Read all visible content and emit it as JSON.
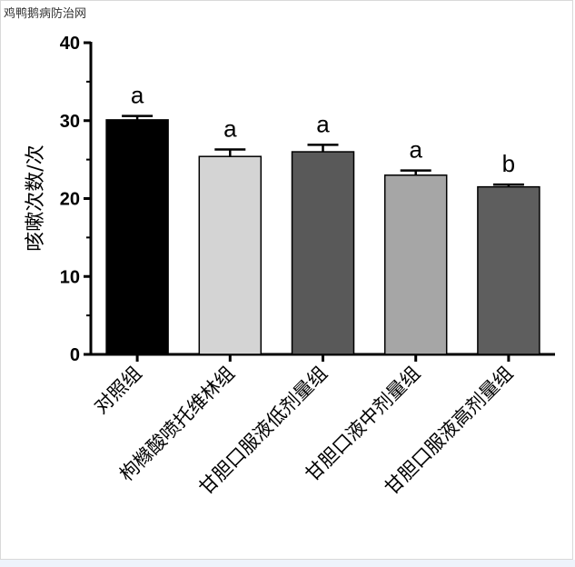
{
  "watermark": "鸡鸭鹅病防治网",
  "chart_data": {
    "type": "bar",
    "ylabel": "咳嗽次数/次",
    "ylim": [
      0,
      40
    ],
    "yticks": [
      0,
      10,
      20,
      30,
      40
    ],
    "categories": [
      "对照组",
      "枸橼酸喷托维林组",
      "甘胆口服液低剂量组",
      "甘胆口液中剂量组",
      "甘胆口服液高剂量组"
    ],
    "values": [
      30.1,
      25.4,
      26.0,
      23.0,
      21.5
    ],
    "errors": [
      0.5,
      0.9,
      0.9,
      0.6,
      0.3
    ],
    "significance": [
      "a",
      "a",
      "a",
      "a",
      "b"
    ],
    "colors": [
      "#000000",
      "#d4d4d4",
      "#595959",
      "#a6a6a6",
      "#5e5e5e"
    ]
  }
}
